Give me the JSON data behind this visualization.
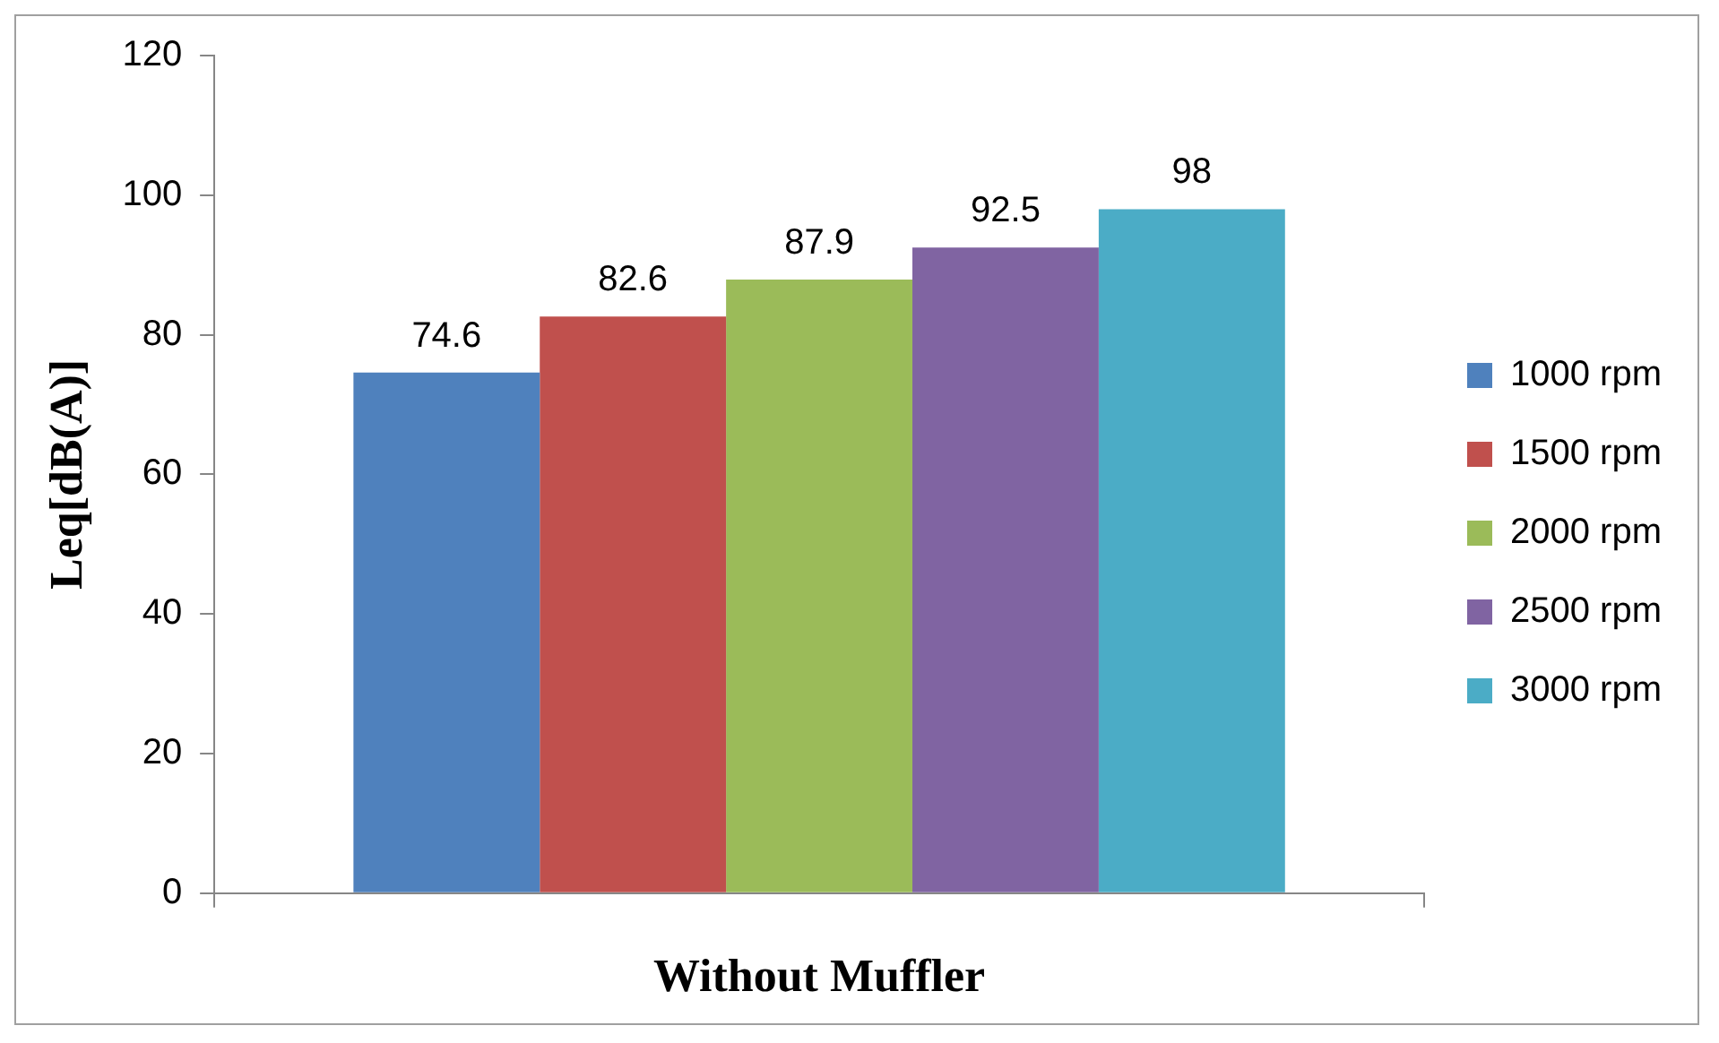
{
  "chart_data": {
    "type": "bar",
    "xlabel": "Without Muffler",
    "ylabel": "Leq[dB(A)]",
    "categories": [
      null
    ],
    "series": [
      {
        "name": "1000 rpm",
        "color": "#4f81bd",
        "values": [
          74.6
        ]
      },
      {
        "name": "1500 rpm",
        "color": "#c0504d",
        "values": [
          82.6
        ]
      },
      {
        "name": "2000 rpm",
        "color": "#9bbb59",
        "values": [
          87.9
        ]
      },
      {
        "name": "2500 rpm",
        "color": "#8064a2",
        "values": [
          92.5
        ]
      },
      {
        "name": "3000 rpm",
        "color": "#4bacc6",
        "values": [
          98
        ]
      }
    ],
    "ylim": [
      0,
      120
    ],
    "yticks": [
      0,
      20,
      40,
      60,
      80,
      100,
      120
    ],
    "grid": false,
    "legend": "right",
    "data_labels": true
  }
}
